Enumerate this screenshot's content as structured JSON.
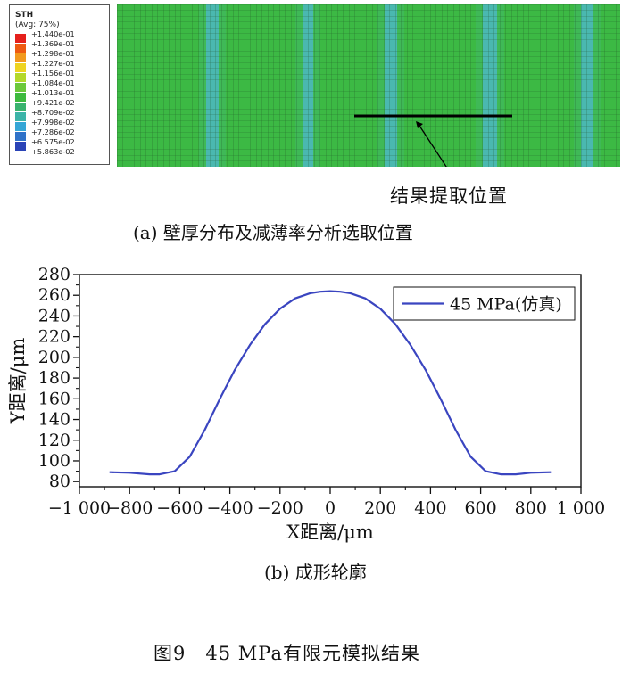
{
  "contour": {
    "legend_title": "STH",
    "legend_subtitle": "(Avg: 75%)",
    "legend_entries": [
      {
        "label": "+1.440e-01",
        "color": "#e5201c"
      },
      {
        "label": "+1.369e-01",
        "color": "#ee5a12"
      },
      {
        "label": "+1.298e-01",
        "color": "#f29a1e"
      },
      {
        "label": "+1.227e-01",
        "color": "#eed421"
      },
      {
        "label": "+1.156e-01",
        "color": "#b4d82a"
      },
      {
        "label": "+1.084e-01",
        "color": "#6cc83a"
      },
      {
        "label": "+1.013e-01",
        "color": "#3dba3e"
      },
      {
        "label": "+9.421e-02",
        "color": "#39b36e"
      },
      {
        "label": "+8.709e-02",
        "color": "#3cb4a8"
      },
      {
        "label": "+7.998e-02",
        "color": "#35a6d6"
      },
      {
        "label": "+7.286e-02",
        "color": "#2f72c8"
      },
      {
        "label": "+6.575e-02",
        "color": "#2a43b6"
      },
      {
        "label": "+5.863e-02",
        "color": ""
      }
    ],
    "mesh_base_color": "#3cb944",
    "band_color": "#4ab8b0",
    "callout_label": "结果提取位置",
    "caption": "(a) 壁厚分布及减薄率分析选取位置"
  },
  "chart_data": {
    "type": "line",
    "title": "",
    "xlabel": "X距离/μm",
    "ylabel": "Y距离/μm",
    "xlim": [
      -1000,
      1000
    ],
    "ylim": [
      75,
      280
    ],
    "x_ticks": [
      -1000,
      -800,
      -600,
      -400,
      -200,
      0,
      200,
      400,
      600,
      800,
      1000
    ],
    "x_tick_labels": [
      "−1 000",
      "−800",
      "−600",
      "−400",
      "−200",
      "0",
      "200",
      "400",
      "600",
      "800",
      "1 000"
    ],
    "y_ticks": [
      80,
      100,
      120,
      140,
      160,
      180,
      200,
      220,
      240,
      260,
      280
    ],
    "y_tick_labels": [
      "80",
      "100",
      "120",
      "140",
      "160",
      "180",
      "200",
      "220",
      "240",
      "260",
      "280"
    ],
    "grid": false,
    "legend_position": "top-right",
    "series": [
      {
        "name": "45 MPa(仿真)",
        "color": "#3a45c0",
        "x": [
          -880,
          -800,
          -720,
          -680,
          -620,
          -560,
          -500,
          -440,
          -380,
          -320,
          -260,
          -200,
          -140,
          -80,
          -40,
          0,
          40,
          80,
          140,
          200,
          260,
          320,
          380,
          440,
          500,
          560,
          620,
          680,
          740,
          800,
          880
        ],
        "y": [
          89,
          88.5,
          87,
          87,
          90,
          104,
          130,
          160,
          188,
          212,
          232,
          247,
          257,
          262,
          263.5,
          264,
          263.5,
          262,
          257,
          247,
          232,
          212,
          188,
          160,
          130,
          104,
          90,
          87,
          87,
          88.5,
          89
        ]
      }
    ]
  },
  "captions": {
    "b": "(b) 成形轮廓",
    "figure": "图9　45 MPa有限元模拟结果"
  }
}
